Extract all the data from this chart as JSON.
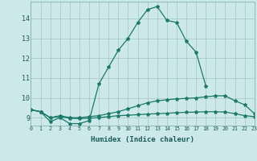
{
  "title": "",
  "xlabel": "Humidex (Indice chaleur)",
  "background_color": "#cce8e8",
  "grid_color": "#aacccc",
  "line_color": "#1a7a6a",
  "x_min": 0,
  "x_max": 23,
  "y_min": 8.6,
  "y_max": 14.85,
  "yticks": [
    9,
    10,
    11,
    12,
    13,
    14
  ],
  "xticks": [
    0,
    1,
    2,
    3,
    4,
    5,
    6,
    7,
    8,
    9,
    10,
    11,
    12,
    13,
    14,
    15,
    16,
    17,
    18,
    19,
    20,
    21,
    22,
    23
  ],
  "xtick_labels": [
    "0",
    "1",
    "2",
    "3",
    "4",
    "5",
    "6",
    "7",
    "8",
    "9",
    "10",
    "11",
    "12",
    "13",
    "14",
    "15",
    "16",
    "17",
    "18",
    "19",
    "20",
    "21",
    "22",
    "23"
  ],
  "series": [
    {
      "x": [
        0,
        1,
        2,
        3,
        4,
        5,
        6,
        7,
        8,
        9,
        10,
        11,
        12,
        13,
        14,
        15,
        16,
        17,
        18
      ],
      "y": [
        9.4,
        9.3,
        8.8,
        9.0,
        8.7,
        8.7,
        8.85,
        10.7,
        11.55,
        12.4,
        13.0,
        13.8,
        14.45,
        14.6,
        13.9,
        13.8,
        12.85,
        12.3,
        10.6
      ]
    },
    {
      "x": [
        0,
        1,
        2,
        3,
        4,
        5,
        6,
        7,
        8,
        9,
        10,
        11,
        12,
        13,
        14,
        15,
        16,
        17,
        18,
        19,
        20,
        21,
        22,
        23
      ],
      "y": [
        9.4,
        9.3,
        9.0,
        9.1,
        9.0,
        9.0,
        9.05,
        9.1,
        9.2,
        9.3,
        9.45,
        9.6,
        9.75,
        9.85,
        9.9,
        9.95,
        9.97,
        10.0,
        10.05,
        10.1,
        10.1,
        9.85,
        9.65,
        9.2
      ]
    },
    {
      "x": [
        0,
        1,
        2,
        3,
        4,
        5,
        6,
        7,
        8,
        9,
        10,
        11,
        12,
        13,
        14,
        15,
        16,
        17,
        18,
        19,
        20,
        21,
        22,
        23
      ],
      "y": [
        9.4,
        9.3,
        9.0,
        9.05,
        8.97,
        8.95,
        8.97,
        9.0,
        9.05,
        9.1,
        9.12,
        9.15,
        9.18,
        9.2,
        9.22,
        9.25,
        9.27,
        9.28,
        9.3,
        9.3,
        9.28,
        9.2,
        9.1,
        9.05
      ]
    }
  ]
}
